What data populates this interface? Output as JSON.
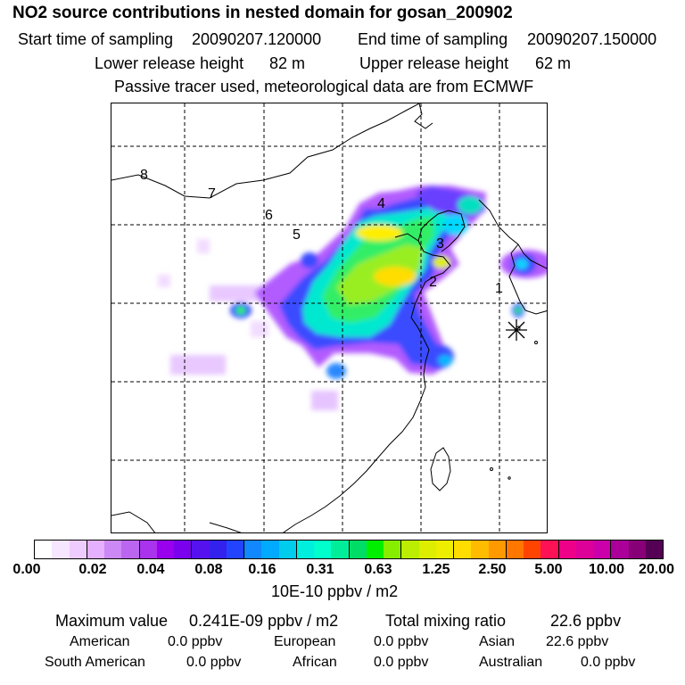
{
  "header": {
    "title": "NO2 source contributions in nested domain for gosan_200902",
    "start_label": "Start time of sampling",
    "start_value": "20090207.120000",
    "end_label": "End time of sampling",
    "end_value": "20090207.150000",
    "lower_label": "Lower release height",
    "lower_value": "82 m",
    "upper_label": "Upper release height",
    "upper_value": "62 m",
    "note": "Passive tracer used, meteorological data are from ECMWF"
  },
  "map": {
    "markers": [
      "1",
      "2",
      "3",
      "4",
      "5",
      "6",
      "7",
      "8"
    ],
    "receptor_symbol": "asterisk"
  },
  "colorbar": {
    "ticks": [
      "0.00",
      "0.02",
      "0.04",
      "0.08",
      "0.16",
      "0.31",
      "0.63",
      "1.25",
      "2.50",
      "5.00",
      "10.00",
      "20.00"
    ],
    "colors": [
      "#ffffff",
      "#f7e6ff",
      "#efccff",
      "#e4b0ff",
      "#cc88f5",
      "#bb66f0",
      "#aa33ee",
      "#9900ee",
      "#7a00ee",
      "#5511ee",
      "#3322ee",
      "#2244ff",
      "#1188ff",
      "#00aaff",
      "#00ccee",
      "#00eedd",
      "#00ffcc",
      "#00ee99",
      "#00dd66",
      "#00ee00",
      "#88ee00",
      "#bbee00",
      "#ddee00",
      "#eeee00",
      "#ffdd00",
      "#ffbb00",
      "#ff9900",
      "#ff7700",
      "#ff4400",
      "#ff1155",
      "#ee0088",
      "#dd0099",
      "#cc00aa",
      "#aa0099",
      "#880077",
      "#550055"
    ],
    "unit": "10E-10 ppbv / m2"
  },
  "stats": {
    "max_label": "Maximum value",
    "max_value": "0.241E-09 ppbv / m2",
    "total_label": "Total mixing ratio",
    "total_value": "22.6 ppbv",
    "regions": [
      {
        "name": "American",
        "value": "0.0 ppbv"
      },
      {
        "name": "European",
        "value": "0.0 ppbv"
      },
      {
        "name": "Asian",
        "value": "22.6 ppbv"
      },
      {
        "name": "South American",
        "value": "0.0 ppbv"
      },
      {
        "name": "African",
        "value": "0.0 ppbv"
      },
      {
        "name": "Australian",
        "value": "0.0 ppbv"
      }
    ]
  }
}
